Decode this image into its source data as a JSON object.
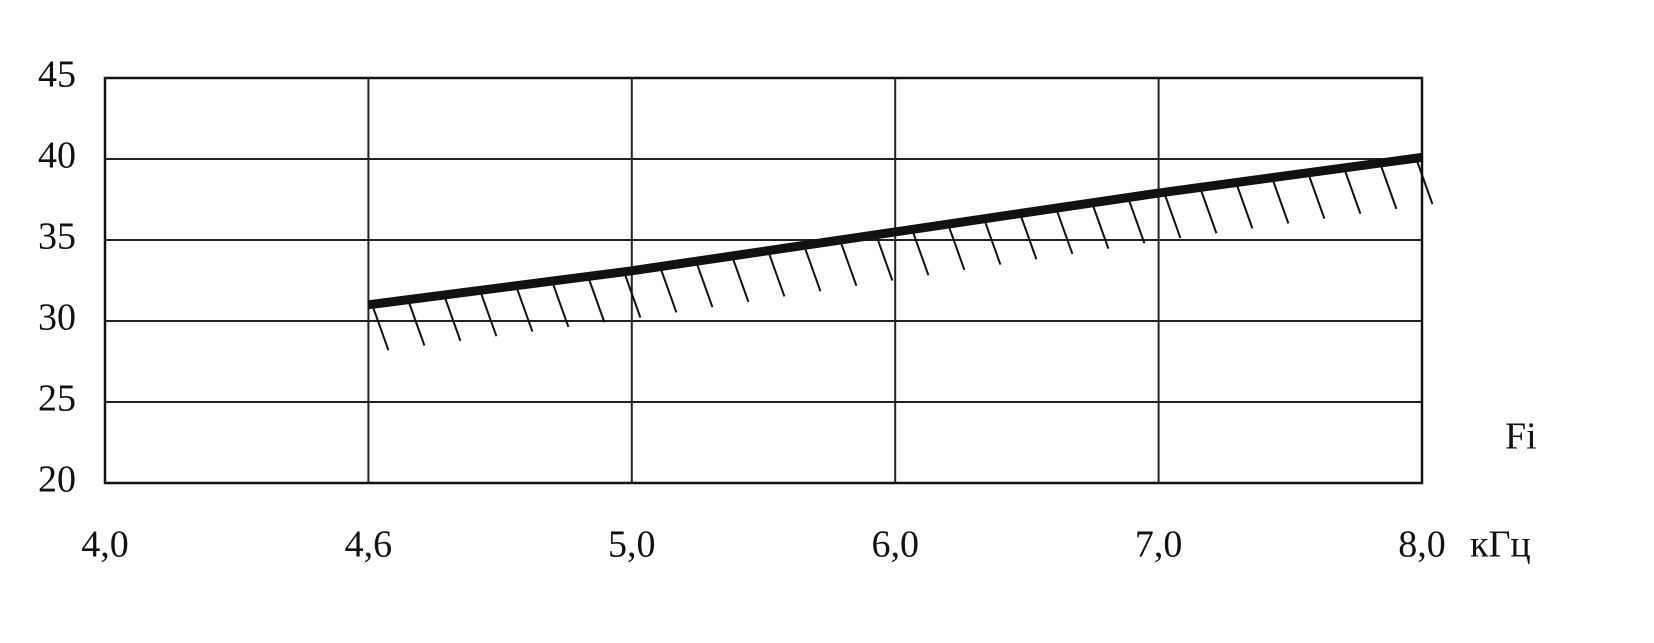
{
  "chart_data": {
    "type": "line",
    "categories": [
      "4,0",
      "4,6",
      "5,0",
      "6,0",
      "7,0",
      "8,0"
    ],
    "x_unit": "кГц",
    "x_label": "Fi",
    "series": [
      {
        "color": "#111111",
        "values": [
          null,
          31.0,
          33.1,
          35.5,
          37.9,
          40.1
        ]
      }
    ],
    "ylim": [
      20,
      45
    ],
    "yticks": [
      20,
      25,
      30,
      35,
      40,
      45
    ],
    "grid": true
  }
}
